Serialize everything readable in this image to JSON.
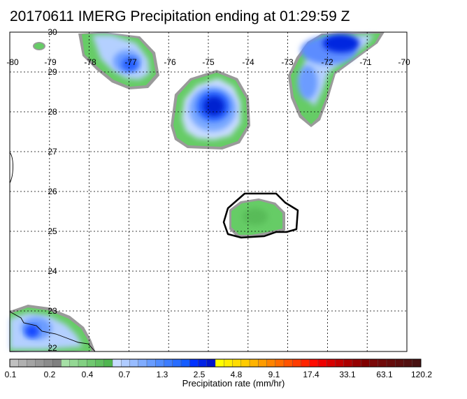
{
  "title": "20170611 IMERG Precipitation ending at 01:29:59 Z",
  "map": {
    "lon_range": [
      -80,
      -70
    ],
    "lat_range": [
      22,
      30
    ],
    "lon_labels": [
      "-80",
      "-79",
      "-78",
      "-77",
      "-76",
      "-75",
      "-74",
      "-73",
      "-72",
      "-71",
      "-70"
    ],
    "lat_labels": [
      "30",
      "29",
      "28",
      "27",
      "26",
      "25",
      "24",
      "23",
      "22"
    ],
    "grid": true
  },
  "colorbar": {
    "title": "Precipitation rate (mm/hr)",
    "tick_labels": [
      "0.1",
      "0.2",
      "0.4",
      "0.7",
      "1.3",
      "2.5",
      "4.8",
      "9.1",
      "17.4",
      "33.1",
      "63.1",
      "120.2"
    ],
    "colors": [
      "#c0c0c0",
      "#b0b0b0",
      "#a4a4a4",
      "#989898",
      "#8c8c8c",
      "#808080",
      "#a6e0a6",
      "#94d894",
      "#82d082",
      "#70c870",
      "#60bf60",
      "#50b650",
      "#c8dcff",
      "#b0ccff",
      "#98bcff",
      "#80acff",
      "#689cff",
      "#508cff",
      "#3c7cff",
      "#286cff",
      "#145cff",
      "#0032ff",
      "#0022e6",
      "#0014cc",
      "#ffff00",
      "#ffee00",
      "#ffdd00",
      "#ffcc00",
      "#ffb400",
      "#ff9c00",
      "#ff8400",
      "#ff6c00",
      "#ff5400",
      "#ff3c00",
      "#ff2400",
      "#ff0c00",
      "#ee0000",
      "#d80000",
      "#c20000",
      "#ac0000",
      "#960000",
      "#800000",
      "#7a0808",
      "#700a0a",
      "#660c0c",
      "#5c0e0e",
      "#521010",
      "#481212"
    ]
  }
}
